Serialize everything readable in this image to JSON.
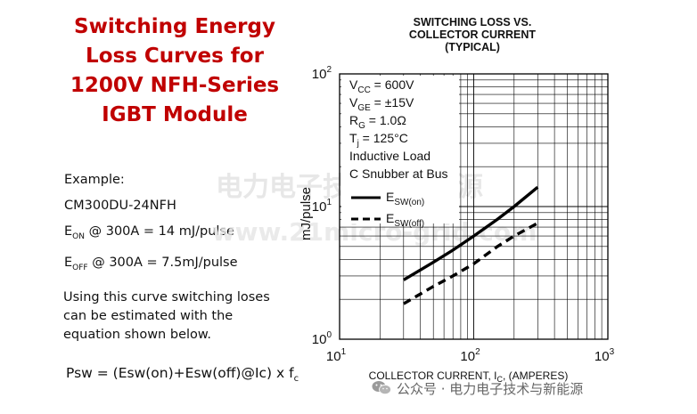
{
  "slide": {
    "title_lines": [
      "Switching Energy",
      "Loss Curves for",
      "1200V NFH-Series",
      "IGBT Module"
    ],
    "example_label": "Example:",
    "example_part": "CM300DU-24NFH",
    "eon_prefix": "E",
    "eon_sub": "ON",
    "eon_text": " @ 300A = 14 mJ/pulse",
    "eoff_prefix": "E",
    "eoff_sub": "OFF",
    "eoff_text": " @ 300A = 7.5mJ/pulse",
    "explanation": "Using this curve switching loses can be estimated with the equation shown below.",
    "equation_main": "Psw = (Esw(on)+Esw(off)@Ic) x f",
    "equation_sub": "c"
  },
  "watermark": {
    "line1": "电力电子技术与新能源",
    "line2": "www.21micro-grid.com"
  },
  "footer": {
    "icon": "wechat-icon",
    "text": "公众号 · 电力电子技术与新能源"
  },
  "chart_data": {
    "type": "line",
    "title_lines": [
      "SWITCHING LOSS VS.",
      "COLLECTOR CURRENT",
      "(TYPICAL)"
    ],
    "xlabel": "COLLECTOR CURRENT, I",
    "xlabel_sub": "C",
    "xlabel_suffix": ", (AMPERES)",
    "ylabel": "mJ/pulse",
    "x_scale": "log",
    "y_scale": "log",
    "xlim": [
      10,
      1000
    ],
    "ylim": [
      1,
      100
    ],
    "x_tick_labels": [
      {
        "base": "10",
        "exp": "1"
      },
      {
        "base": "10",
        "exp": "2"
      },
      {
        "base": "10",
        "exp": "3"
      }
    ],
    "y_tick_labels": [
      {
        "base": "10",
        "exp": "0"
      },
      {
        "base": "10",
        "exp": "1"
      },
      {
        "base": "10",
        "exp": "2"
      }
    ],
    "grid": true,
    "conditions": [
      {
        "main": "V",
        "sub": "CC",
        "rest": " = 600V"
      },
      {
        "main": "V",
        "sub": "GE",
        "rest": " = ±15V"
      },
      {
        "main": "R",
        "sub": "G",
        "rest": " = 1.0Ω"
      },
      {
        "main": "T",
        "sub": "j",
        "rest": " = 125°C"
      },
      {
        "main": "Inductive Load",
        "sub": "",
        "rest": ""
      },
      {
        "main": "C Snubber at Bus",
        "sub": "",
        "rest": ""
      }
    ],
    "legend_position": "top-left",
    "series": [
      {
        "name": "E",
        "name_sub": "SW(on)",
        "style": "solid",
        "color": "#000000",
        "x": [
          30,
          50,
          70,
          100,
          150,
          200,
          300
        ],
        "y": [
          2.8,
          3.8,
          4.7,
          6.0,
          8.0,
          10.0,
          14.0
        ]
      },
      {
        "name": "E",
        "name_sub": "SW(off)",
        "style": "dashed",
        "color": "#000000",
        "x": [
          30,
          50,
          70,
          100,
          150,
          200,
          300
        ],
        "y": [
          1.85,
          2.5,
          3.0,
          3.7,
          5.0,
          6.0,
          7.5
        ]
      }
    ]
  }
}
